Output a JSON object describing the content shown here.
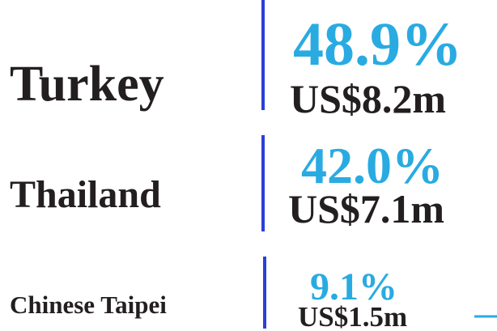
{
  "rows": [
    {
      "name": "Turkey",
      "percent": "48.9%",
      "amount": "US$8.2m"
    },
    {
      "name": "Thailand",
      "percent": "42.0%",
      "amount": "US$7.1m"
    },
    {
      "name": "Chinese Taipei",
      "percent": "9.1%",
      "amount": "US$1.5m"
    }
  ]
}
